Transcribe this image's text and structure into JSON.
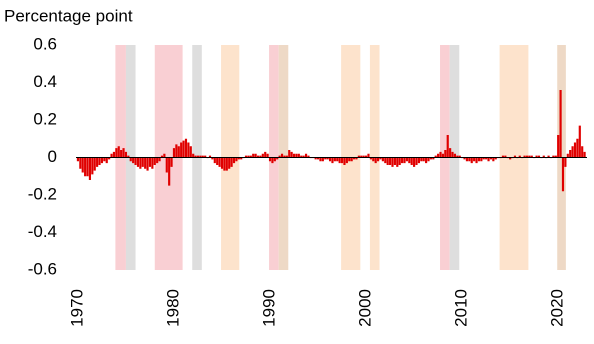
{
  "chart_data": {
    "type": "bar",
    "y_label": "Percentage point",
    "color": "#e00000",
    "xlim": [
      1969.8,
      2023
    ],
    "ylim": [
      -0.6,
      0.6
    ],
    "xticks": [
      1970,
      1980,
      1990,
      2000,
      2010,
      2020
    ],
    "yticks": [
      0.6,
      0.4,
      0.2,
      0,
      -0.2,
      -0.4,
      -0.6
    ],
    "shaded_regions": [
      {
        "start": 1973.9,
        "end": 1975,
        "color": "#f9cfd3"
      },
      {
        "start": 1975,
        "end": 1976,
        "color": "#dedede"
      },
      {
        "start": 1978,
        "end": 1980.9,
        "color": "#f9cfd3"
      },
      {
        "start": 1981.9,
        "end": 1982.9,
        "color": "#dedede"
      },
      {
        "start": 1984.9,
        "end": 1986.8,
        "color": "#fde3cc"
      },
      {
        "start": 1989.9,
        "end": 1990.9,
        "color": "#f9cfd3"
      },
      {
        "start": 1990.9,
        "end": 1991.9,
        "color": "#eed9c6"
      },
      {
        "start": 1997.4,
        "end": 1999.4,
        "color": "#fde3cc"
      },
      {
        "start": 2000.4,
        "end": 2001.4,
        "color": "#fde3cc"
      },
      {
        "start": 2007.7,
        "end": 2008.7,
        "color": "#f9cfd3"
      },
      {
        "start": 2008.7,
        "end": 2009.7,
        "color": "#dedede"
      },
      {
        "start": 2013.9,
        "end": 2016.9,
        "color": "#fde3cc"
      },
      {
        "start": 2019.9,
        "end": 2020.8,
        "color": "#eed9c6"
      }
    ],
    "x": [
      1970,
      1970.25,
      1970.5,
      1970.75,
      1971,
      1971.25,
      1971.5,
      1971.75,
      1972,
      1972.25,
      1972.5,
      1972.75,
      1973,
      1973.25,
      1973.5,
      1973.75,
      1974,
      1974.25,
      1974.5,
      1974.75,
      1975,
      1975.25,
      1975.5,
      1975.75,
      1976,
      1976.25,
      1976.5,
      1976.75,
      1977,
      1977.25,
      1977.5,
      1977.75,
      1978,
      1978.25,
      1978.5,
      1978.75,
      1979,
      1979.25,
      1979.5,
      1979.75,
      1980,
      1980.25,
      1980.5,
      1980.75,
      1981,
      1981.25,
      1981.5,
      1981.75,
      1982,
      1982.25,
      1982.5,
      1982.75,
      1983,
      1983.25,
      1983.5,
      1983.75,
      1984,
      1984.25,
      1984.5,
      1984.75,
      1985,
      1985.25,
      1985.5,
      1985.75,
      1986,
      1986.25,
      1986.5,
      1986.75,
      1987,
      1987.25,
      1987.5,
      1987.75,
      1988,
      1988.25,
      1988.5,
      1988.75,
      1989,
      1989.25,
      1989.5,
      1989.75,
      1990,
      1990.25,
      1990.5,
      1990.75,
      1991,
      1991.25,
      1991.5,
      1991.75,
      1992,
      1992.25,
      1992.5,
      1992.75,
      1993,
      1993.25,
      1993.5,
      1993.75,
      1994,
      1994.25,
      1994.5,
      1994.75,
      1995,
      1995.25,
      1995.5,
      1995.75,
      1996,
      1996.25,
      1996.5,
      1996.75,
      1997,
      1997.25,
      1997.5,
      1997.75,
      1998,
      1998.25,
      1998.5,
      1998.75,
      1999,
      1999.25,
      1999.5,
      1999.75,
      2000,
      2000.25,
      2000.5,
      2000.75,
      2001,
      2001.25,
      2001.5,
      2001.75,
      2002,
      2002.25,
      2002.5,
      2002.75,
      2003,
      2003.25,
      2003.5,
      2003.75,
      2004,
      2004.25,
      2004.5,
      2004.75,
      2005,
      2005.25,
      2005.5,
      2005.75,
      2006,
      2006.25,
      2006.5,
      2006.75,
      2007,
      2007.25,
      2007.5,
      2007.75,
      2008,
      2008.25,
      2008.5,
      2008.75,
      2009,
      2009.25,
      2009.5,
      2009.75,
      2010,
      2010.25,
      2010.5,
      2010.75,
      2011,
      2011.25,
      2011.5,
      2011.75,
      2012,
      2012.25,
      2012.5,
      2012.75,
      2013,
      2013.25,
      2013.5,
      2013.75,
      2014,
      2014.25,
      2014.5,
      2014.75,
      2015,
      2015.25,
      2015.5,
      2015.75,
      2016,
      2016.25,
      2016.5,
      2016.75,
      2017,
      2017.25,
      2017.5,
      2017.75,
      2018,
      2018.25,
      2018.5,
      2018.75,
      2019,
      2019.25,
      2019.5,
      2019.75,
      2020,
      2020.25,
      2020.5,
      2020.75,
      2021,
      2021.25,
      2021.5,
      2021.75,
      2022,
      2022.25,
      2022.5,
      2022.75
    ],
    "values": [
      -0.02,
      -0.06,
      -0.08,
      -0.1,
      -0.1,
      -0.12,
      -0.09,
      -0.07,
      -0.05,
      -0.04,
      -0.03,
      -0.02,
      -0.03,
      -0.01,
      0.02,
      0.03,
      0.05,
      0.06,
      0.04,
      0.05,
      0.03,
      0.01,
      -0.02,
      -0.03,
      -0.04,
      -0.05,
      -0.06,
      -0.05,
      -0.06,
      -0.07,
      -0.05,
      -0.06,
      -0.04,
      -0.03,
      -0.02,
      0.01,
      0.02,
      -0.08,
      -0.15,
      -0.05,
      0.05,
      0.07,
      0.06,
      0.08,
      0.09,
      0.1,
      0.08,
      0.06,
      0.02,
      0.01,
      0.01,
      0.01,
      0.01,
      0.01,
      0,
      0.01,
      -0.01,
      -0.03,
      -0.04,
      -0.05,
      -0.06,
      -0.07,
      -0.07,
      -0.06,
      -0.05,
      -0.03,
      -0.02,
      -0.01,
      -0.01,
      0,
      0.01,
      0.01,
      0.01,
      0.02,
      0.02,
      0.01,
      0.01,
      0.02,
      0.03,
      0.02,
      -0.02,
      -0.03,
      -0.02,
      -0.01,
      0.01,
      0.02,
      0.01,
      0.01,
      0.04,
      0.03,
      0.02,
      0.02,
      0.02,
      0.01,
      0.01,
      0.02,
      0.01,
      0,
      0,
      -0.01,
      -0.01,
      -0.02,
      -0.02,
      -0.01,
      -0.01,
      -0.02,
      -0.03,
      -0.02,
      -0.02,
      -0.03,
      -0.03,
      -0.04,
      -0.03,
      -0.02,
      -0.02,
      -0.01,
      -0.01,
      0.01,
      0.01,
      0.01,
      0.01,
      0.02,
      -0.01,
      -0.02,
      -0.03,
      -0.02,
      -0.01,
      -0.02,
      -0.03,
      -0.04,
      -0.04,
      -0.05,
      -0.04,
      -0.05,
      -0.04,
      -0.03,
      -0.03,
      -0.02,
      -0.03,
      -0.04,
      -0.05,
      -0.04,
      -0.03,
      -0.02,
      -0.02,
      -0.03,
      -0.02,
      -0.01,
      -0.01,
      0.01,
      0.02,
      0.03,
      0.02,
      0.04,
      0.12,
      0.05,
      0.03,
      0.02,
      0.01,
      0.01,
      0,
      -0.01,
      -0.02,
      -0.02,
      -0.03,
      -0.02,
      -0.03,
      -0.02,
      -0.02,
      -0.01,
      -0.01,
      -0.02,
      -0.01,
      -0.02,
      -0.01,
      0,
      0,
      0.01,
      0.01,
      0,
      -0.01,
      0,
      0.01,
      0,
      0.01,
      0,
      0.01,
      0.01,
      0.01,
      0.01,
      0,
      0.01,
      0.01,
      0,
      0.01,
      0,
      0.01,
      0,
      0.01,
      0.01,
      0.12,
      0.36,
      -0.18,
      -0.05,
      0.02,
      0.04,
      0.06,
      0.08,
      0.1,
      0.17,
      0.06,
      0.03
    ]
  }
}
